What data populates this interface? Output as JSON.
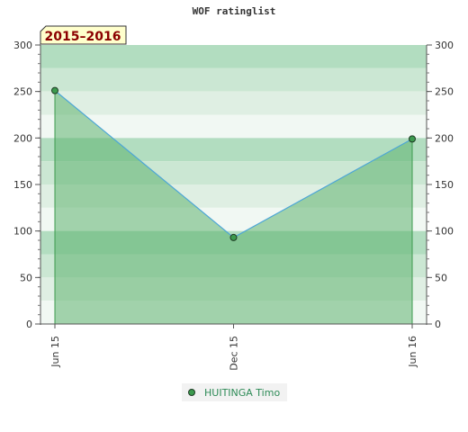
{
  "chart_data": {
    "type": "area",
    "title": "WOF ratinglist",
    "period_label": "2015–2016",
    "categories": [
      "Jun 15",
      "Dec 15",
      "Jun 16"
    ],
    "x_fraction": [
      0,
      0.5,
      1
    ],
    "series": [
      {
        "name": "HUITINGA Timo",
        "values": [
          251,
          93,
          199
        ]
      }
    ],
    "ylim": [
      0,
      300
    ],
    "yticks": [
      0,
      50,
      100,
      150,
      200,
      250,
      300
    ],
    "right_axis": true,
    "grid": false,
    "legend_position": "bottom-center"
  },
  "colors": {
    "line": "#4da6d6",
    "area_fill": "#5fb26f",
    "marker_fill": "#3c9a4e",
    "marker_stroke": "#1e3a24",
    "badge_bg": "#ffffcc",
    "legend_bg": "#f2f2f2",
    "band_colors": [
      "#b2ddc0",
      "#cbe7d3",
      "#dfefe3",
      "#f1f8f3"
    ]
  }
}
